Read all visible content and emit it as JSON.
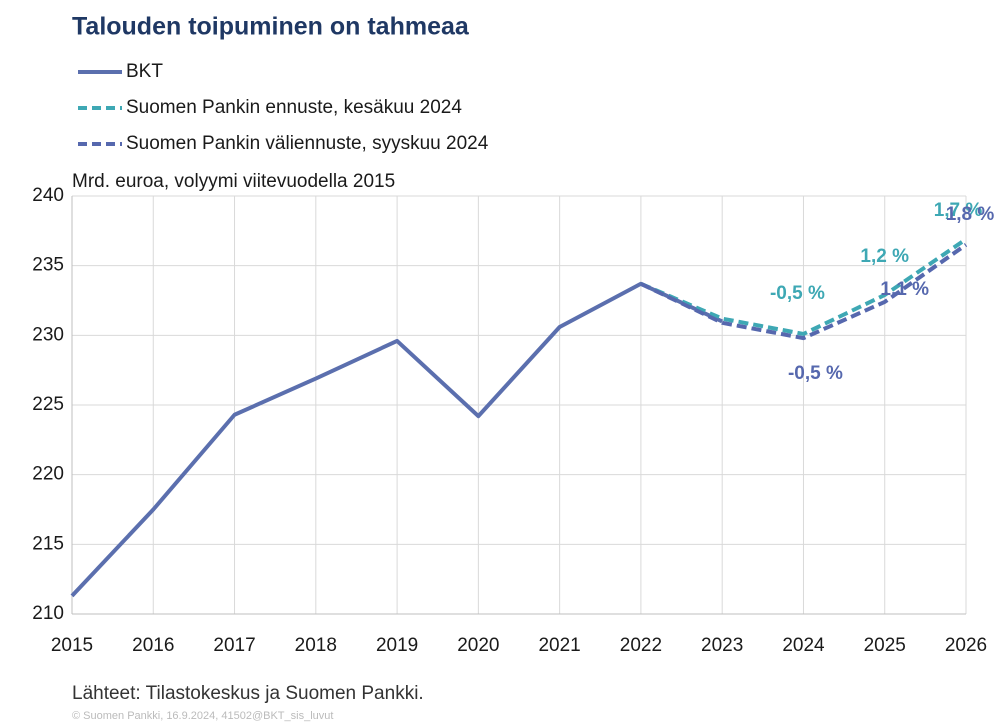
{
  "chart_data": {
    "type": "line",
    "title": "Talouden toipuminen on tahmeaa",
    "subtitle": "Mrd. euroa, volyymi viitevuodella 2015",
    "source": "Lähteet: Tilastokeskus ja Suomen Pankki.",
    "footnote": "© Suomen Pankki, 16.9.2024, 41502@BKT_sis_luvut",
    "x": [
      2015,
      2016,
      2017,
      2018,
      2019,
      2020,
      2021,
      2022,
      2023,
      2024,
      2025,
      2026
    ],
    "series": [
      {
        "name": "BKT",
        "color": "#5b6fae",
        "dash": false,
        "values": [
          211.3,
          217.5,
          224.3,
          226.9,
          229.6,
          224.2,
          230.6,
          233.7,
          231.0,
          null,
          null,
          null
        ]
      },
      {
        "name": "Suomen Pankin ennuste, kesäkuu 2024",
        "color": "#3ea8b4",
        "dash": true,
        "values": [
          null,
          null,
          null,
          null,
          null,
          null,
          null,
          233.7,
          231.2,
          230.1,
          232.9,
          236.9
        ],
        "annotations": [
          "-0,5 %",
          "1,2 %",
          "1,7 %"
        ]
      },
      {
        "name": "Suomen Pankin väliennuste, syyskuu 2024",
        "color": "#5668ae",
        "dash": true,
        "values": [
          null,
          null,
          null,
          null,
          null,
          null,
          null,
          233.7,
          230.9,
          229.8,
          232.4,
          236.5
        ],
        "annotations": [
          "-0,5 %",
          "1,1 %",
          "1,8 %"
        ]
      }
    ],
    "xlim": [
      2015,
      2026
    ],
    "xticks": [
      2015,
      2016,
      2017,
      2018,
      2019,
      2020,
      2021,
      2022,
      2023,
      2024,
      2025,
      2026
    ],
    "ylim": [
      210,
      240
    ],
    "yticks": [
      210,
      215,
      220,
      225,
      230,
      235,
      240
    ],
    "grid": true
  }
}
